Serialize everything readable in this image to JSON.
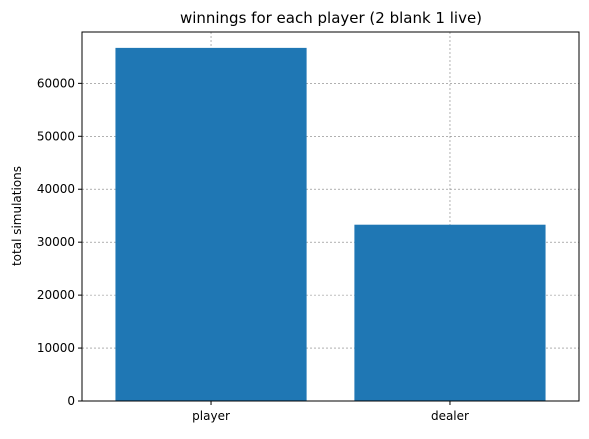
{
  "chart_data": {
    "type": "bar",
    "title": "winnings for each player (2 blank 1 live)",
    "xlabel": "",
    "ylabel": "total simulations",
    "categories": [
      "player",
      "dealer"
    ],
    "values": [
      66700,
      33300
    ],
    "ylim": [
      0,
      69700
    ],
    "yticks": [
      0,
      10000,
      20000,
      30000,
      40000,
      50000,
      60000
    ],
    "ytick_labels": [
      "0",
      "10000",
      "20000",
      "30000",
      "40000",
      "50000",
      "60000"
    ],
    "grid": true,
    "legend": "none",
    "bar_color": "#1f77b4",
    "grid_color": "#808080",
    "axis_color": "#000000"
  }
}
